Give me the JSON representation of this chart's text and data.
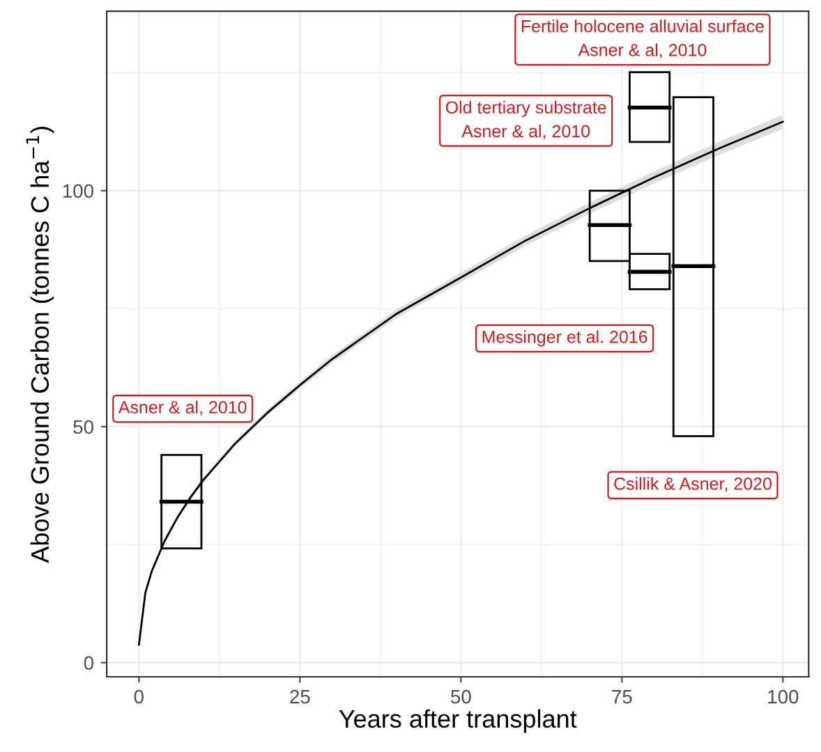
{
  "chart_data": {
    "type": "box",
    "xlabel": "Years after transplant",
    "ylabel": "Above Ground Carbon (tonnes C ha$^{−1}$)",
    "xlim": [
      -5,
      104
    ],
    "ylim": [
      -3,
      138
    ],
    "xticks": [
      0,
      25,
      50,
      75,
      100
    ],
    "yticks": [
      0,
      50,
      100
    ],
    "grid": true,
    "series": [
      {
        "color": "#000000",
        "x": [
          6.6,
          73.1,
          79.3,
          79.3,
          86.1
        ],
        "boxes": [
          {
            "low": 24.2,
            "q1": 24.2,
            "median": 34.1,
            "q3": 44.0,
            "high": 44.0
          },
          {
            "low": 85.1,
            "q1": 85.1,
            "median": 92.7,
            "q3": 100.0,
            "high": 100.0
          },
          {
            "low": 110.3,
            "q1": 110.3,
            "median": 117.6,
            "q3": 125.1,
            "high": 125.1
          },
          {
            "low": 79.1,
            "q1": 79.1,
            "median": 82.8,
            "q3": 86.6,
            "high": 86.6
          },
          {
            "low": 48.0,
            "q1": 48.0,
            "median": 84.0,
            "q3": 119.8,
            "high": 119.8
          }
        ]
      },
      {
        "type": "line",
        "color": "#000000",
        "x": [
          0,
          1,
          2,
          4,
          6,
          8,
          10,
          15,
          20,
          25,
          30,
          40,
          50,
          60,
          70,
          80,
          90,
          100
        ],
        "values": [
          3.8,
          14.8,
          19.4,
          25.8,
          30.8,
          35.0,
          38.7,
          46.5,
          53.0,
          58.8,
          64.3,
          73.9,
          81.6,
          89.4,
          96.3,
          102.8,
          108.9,
          114.6
        ],
        "lower": [
          3.3,
          14.3,
          18.9,
          25.3,
          30.3,
          34.5,
          38.2,
          46.0,
          52.4,
          58.1,
          63.5,
          73.0,
          80.6,
          88.3,
          95.1,
          101.5,
          107.5,
          113.1
        ],
        "upper": [
          4.3,
          15.3,
          19.9,
          26.3,
          31.3,
          35.5,
          39.2,
          47.0,
          53.6,
          59.5,
          65.1,
          74.8,
          82.6,
          90.5,
          97.5,
          104.1,
          110.3,
          116.1
        ]
      }
    ],
    "annotations": [
      "Asner & al, 2010",
      "Messinger et al. 2016",
      "Old tertiary substrate\nAsner & al, 2010",
      "Fertile holocene alluvial surface\nAsner & al, 2010",
      "Csillik & Asner, 2020"
    ]
  }
}
